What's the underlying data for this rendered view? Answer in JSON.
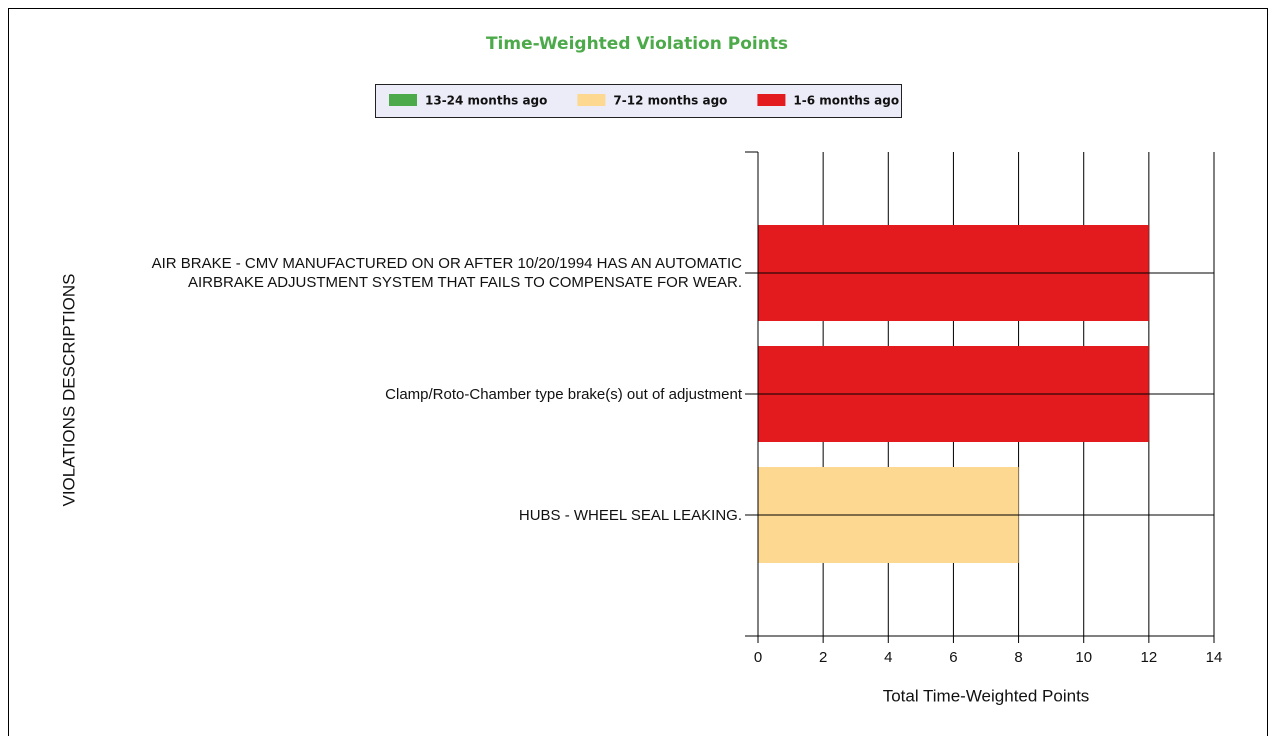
{
  "chart_data": {
    "type": "stacked_bar_horizontal",
    "title": "Time-Weighted Violation Points",
    "categories": [
      "AIR BRAKE - CMV MANUFACTURED ON OR AFTER 10/20/1994 HAS AN AUTOMATIC AIRBRAKE ADJUSTMENT SYSTEM THAT FAILS TO COMPENSATE FOR WEAR.",
      "Clamp/Roto-Chamber type brake(s) out of adjustment",
      "HUBS - WHEEL SEAL LEAKING."
    ],
    "series": [
      {
        "name": "13-24 months ago",
        "color": "#4caa4a",
        "values": [
          0,
          0,
          0
        ]
      },
      {
        "name": "7-12 months ago",
        "color": "#fdd891",
        "values": [
          0,
          0,
          8
        ]
      },
      {
        "name": "1-6 months ago",
        "color": "#e31b1f",
        "values": [
          12,
          12,
          0
        ]
      }
    ],
    "xlabel": "Total Time-Weighted Points",
    "ylabel": "VIOLATIONS DESCRIPTIONS",
    "xlim": [
      0,
      14
    ],
    "xticks": [
      0,
      2,
      4,
      6,
      8,
      10,
      12,
      14
    ],
    "grid": true
  }
}
